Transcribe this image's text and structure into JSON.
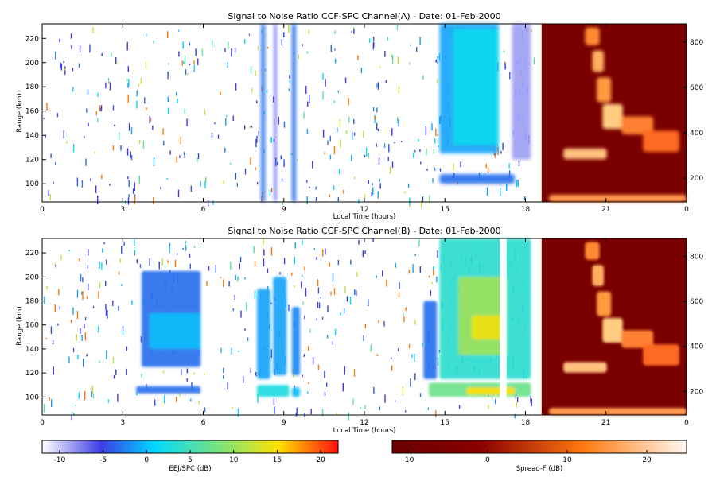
{
  "chart_data": [
    {
      "type": "heatmap",
      "title": "Signal to Noise Ratio CCF-SPC Channel(A) - Date: 01-Feb-2000",
      "xlabel": "Local Time (hours)",
      "ylabel": "Range (km)",
      "xlim": [
        0,
        24
      ],
      "ylim": [
        85,
        232
      ],
      "x_ticks": [
        "0",
        "3",
        "6",
        "9",
        "12",
        "15",
        "18",
        "21",
        "0"
      ],
      "y_ticks": [
        100,
        120,
        140,
        160,
        180,
        200,
        220
      ],
      "right_ylim": [
        95,
        880
      ],
      "right_ticks": [
        200,
        400,
        600,
        800
      ],
      "regions": [
        {
          "t0": 8.15,
          "t1": 8.3,
          "r0": 85,
          "r1": 232,
          "db": -6
        },
        {
          "t0": 8.65,
          "t1": 8.72,
          "r0": 85,
          "r1": 232,
          "db": -8
        },
        {
          "t0": 9.3,
          "t1": 9.45,
          "r0": 85,
          "r1": 232,
          "db": -6
        },
        {
          "t0": 14.8,
          "t1": 17.0,
          "r0": 125,
          "r1": 232,
          "db": -4
        },
        {
          "t0": 15.3,
          "t1": 17.0,
          "r0": 132,
          "r1": 228,
          "db": -1
        },
        {
          "t0": 14.8,
          "t1": 17.6,
          "r0": 100,
          "r1": 108,
          "db": -6
        },
        {
          "t0": 17.5,
          "t1": 18.2,
          "r0": 120,
          "r1": 232,
          "db": -10
        }
      ]
    },
    {
      "type": "heatmap",
      "title": "Signal to Noise Ratio CCF-SPC Channel(B) - Date: 01-Feb-2000",
      "xlabel": "Local Time (hours)",
      "ylabel": "Range (km)",
      "xlim": [
        0,
        24
      ],
      "ylim": [
        85,
        232
      ],
      "x_ticks": [
        "0",
        "3",
        "6",
        "9",
        "12",
        "15",
        "18",
        "21",
        "0"
      ],
      "y_ticks": [
        100,
        120,
        140,
        160,
        180,
        200,
        220
      ],
      "right_ylim": [
        95,
        880
      ],
      "right_ticks": [
        200,
        400,
        600,
        800
      ],
      "regions": [
        {
          "t0": 3.7,
          "t1": 5.9,
          "r0": 125,
          "r1": 205,
          "db": -6
        },
        {
          "t0": 4.0,
          "t1": 5.9,
          "r0": 140,
          "r1": 170,
          "db": -3
        },
        {
          "t0": 3.5,
          "t1": 5.9,
          "r0": 103,
          "r1": 109,
          "db": -6
        },
        {
          "t0": 8.0,
          "t1": 8.5,
          "r0": 115,
          "r1": 190,
          "db": -4
        },
        {
          "t0": 8.6,
          "t1": 9.1,
          "r0": 118,
          "r1": 200,
          "db": -4
        },
        {
          "t0": 9.3,
          "t1": 9.6,
          "r0": 118,
          "r1": 175,
          "db": -5
        },
        {
          "t0": 8.0,
          "t1": 9.2,
          "r0": 100,
          "r1": 110,
          "db": 0
        },
        {
          "t0": 9.3,
          "t1": 9.6,
          "r0": 100,
          "r1": 108,
          "db": -3
        },
        {
          "t0": 14.2,
          "t1": 14.7,
          "r0": 115,
          "r1": 180,
          "db": -6
        },
        {
          "t0": 14.8,
          "t1": 18.2,
          "r0": 115,
          "r1": 232,
          "db": 1
        },
        {
          "t0": 15.5,
          "t1": 17.3,
          "r0": 135,
          "r1": 200,
          "db": 8
        },
        {
          "t0": 16.0,
          "t1": 17.2,
          "r0": 148,
          "r1": 168,
          "db": 13
        },
        {
          "t0": 14.4,
          "t1": 18.2,
          "r0": 100,
          "r1": 112,
          "db": 5
        },
        {
          "t0": 15.8,
          "t1": 17.6,
          "r0": 102,
          "r1": 108,
          "db": 14
        }
      ],
      "gaps": [
        {
          "t0": 17.05,
          "t1": 17.3
        }
      ]
    }
  ],
  "colorbars": [
    {
      "label": "EEJ/SPC (dB)",
      "min": -12,
      "max": 22,
      "ticks": [
        -10,
        -5,
        0,
        5,
        10,
        15,
        20
      ]
    },
    {
      "label": "Spread-F (dB)",
      "min": -12,
      "max": 25,
      "ticks": [
        -10,
        0,
        10,
        20
      ]
    }
  ]
}
